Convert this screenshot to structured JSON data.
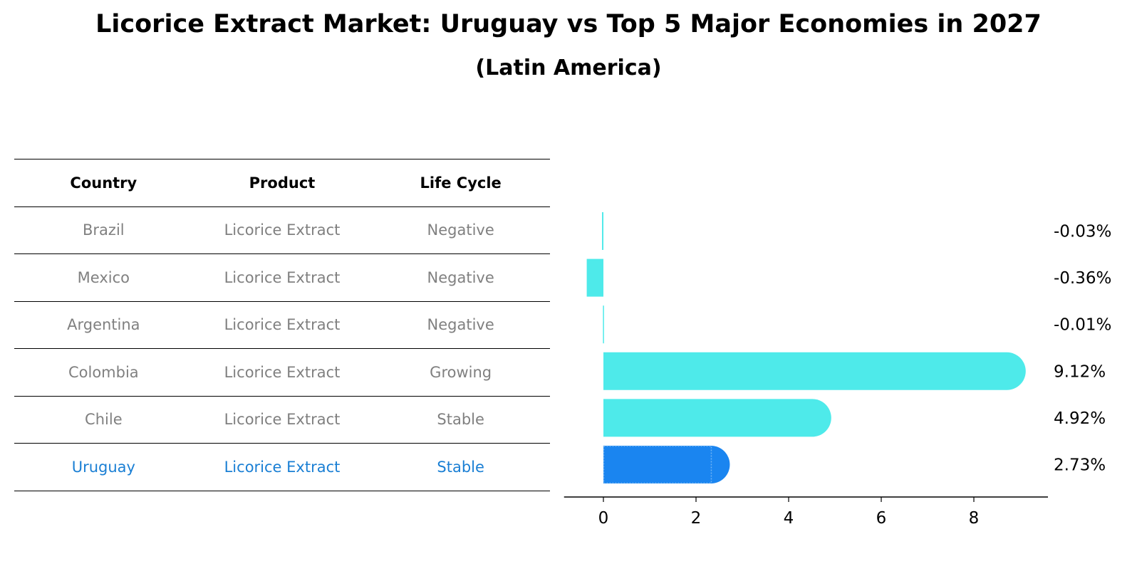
{
  "title": "Licorice Extract Market: Uruguay vs Top 5 Major Economies in 2027",
  "subtitle": "(Latin America)",
  "table": {
    "headers": [
      "Country",
      "Product",
      "Life Cycle"
    ],
    "rows": [
      {
        "country": "Brazil",
        "product": "Licorice Extract",
        "life_cycle": "Negative"
      },
      {
        "country": "Mexico",
        "product": "Licorice Extract",
        "life_cycle": "Negative"
      },
      {
        "country": "Argentina",
        "product": "Licorice Extract",
        "life_cycle": "Negative"
      },
      {
        "country": "Colombia",
        "product": "Licorice Extract",
        "life_cycle": "Growing"
      },
      {
        "country": "Chile",
        "product": "Licorice Extract",
        "life_cycle": "Stable"
      },
      {
        "country": "Uruguay",
        "product": "Licorice Extract",
        "life_cycle": "Stable"
      }
    ]
  },
  "colors": {
    "bar": "#4eeaea",
    "highlight": "#1a85f0",
    "highlight_text": "#1a7fd4",
    "muted_text": "#808080"
  },
  "chart_data": {
    "type": "bar",
    "orientation": "horizontal",
    "categories": [
      "Brazil",
      "Mexico",
      "Argentina",
      "Colombia",
      "Chile",
      "Uruguay"
    ],
    "values": [
      -0.03,
      -0.36,
      -0.01,
      9.12,
      4.92,
      2.73
    ],
    "value_labels": [
      "-0.03%",
      "-0.36%",
      "-0.01%",
      "9.12%",
      "4.92%",
      "2.73%"
    ],
    "highlighted_category": "Uruguay",
    "xticks": [
      "0",
      "2",
      "4",
      "6",
      "8"
    ],
    "xlim": [
      -0.85,
      9.6
    ],
    "xlabel": "",
    "ylabel": "",
    "grid": false
  }
}
